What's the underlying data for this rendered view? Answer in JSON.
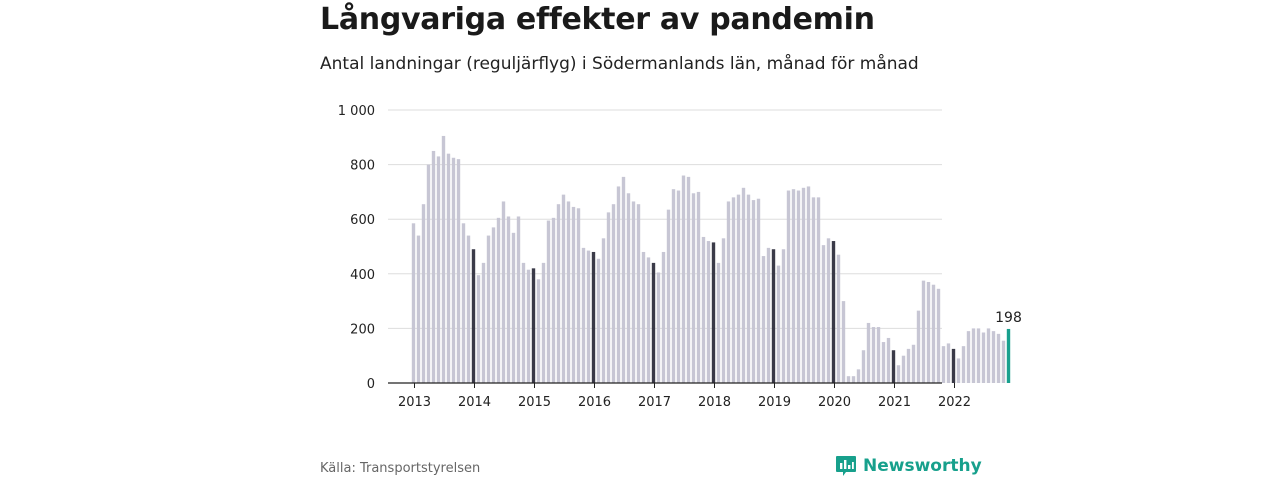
{
  "title": "Långvariga effekter av pandemin",
  "subtitle": "Antal landningar (reguljärflyg) i Södermanlands län, månad för månad",
  "source": "Källa: Transportstyrelsen",
  "brand": "Newsworthy",
  "colors": {
    "bar": "#c7c6d4",
    "january_bar": "#3a3a48",
    "latest_bar": "#19a08e",
    "grid": "#dddddd",
    "brand": "#17a08c"
  },
  "chart_data": {
    "type": "bar",
    "title": "Långvariga effekter av pandemin",
    "subtitle": "Antal landningar (reguljärflyg) i Södermanlands län, månad för månad",
    "xlabel": "",
    "ylabel": "",
    "ylim": [
      0,
      1000
    ],
    "yticks": [
      0,
      200,
      400,
      600,
      800,
      1000
    ],
    "ytick_labels": [
      "0",
      "200",
      "400",
      "600",
      "800",
      "1 000"
    ],
    "xtick_labels": [
      "2013",
      "2014",
      "2015",
      "2016",
      "2017",
      "2018",
      "2019",
      "2020",
      "2021",
      "2022"
    ],
    "start": "2013-01",
    "end": "2022-12",
    "highlight": "January bars drawn dark; latest month highlighted",
    "latest_label": "198",
    "values": [
      585,
      540,
      655,
      800,
      850,
      830,
      905,
      840,
      825,
      820,
      585,
      540,
      490,
      395,
      440,
      540,
      570,
      605,
      665,
      610,
      550,
      610,
      440,
      415,
      420,
      380,
      440,
      595,
      605,
      655,
      690,
      665,
      645,
      640,
      495,
      485,
      480,
      455,
      530,
      625,
      655,
      720,
      755,
      695,
      665,
      655,
      480,
      460,
      440,
      405,
      480,
      635,
      710,
      705,
      760,
      755,
      695,
      700,
      535,
      520,
      515,
      440,
      530,
      665,
      680,
      690,
      715,
      690,
      670,
      675,
      465,
      495,
      490,
      430,
      490,
      705,
      710,
      705,
      715,
      720,
      680,
      680,
      505,
      530,
      520,
      470,
      300,
      25,
      25,
      50,
      120,
      220,
      205,
      205,
      150,
      165,
      120,
      65,
      100,
      125,
      140,
      265,
      375,
      370,
      360,
      345,
      135,
      145,
      125,
      90,
      135,
      190,
      200,
      200,
      185,
      200,
      190,
      180,
      155,
      198
    ]
  }
}
